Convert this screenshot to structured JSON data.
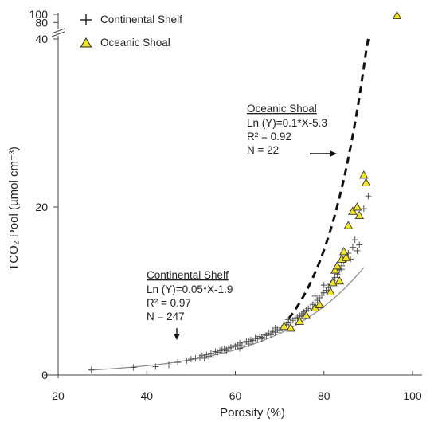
{
  "chart_data": {
    "type": "scatter",
    "xlabel": "Porosity (%)",
    "ylabel": "TCO₂ Pool (µmol cm⁻³)",
    "xlim": [
      20,
      100
    ],
    "ylim": [
      0,
      40
    ],
    "y_axis_break": "40 to 100 compressed",
    "x_ticks": [
      "20",
      "40",
      "60",
      "80",
      "100"
    ],
    "y_ticks": [
      "0",
      "20",
      "40",
      "80",
      "100"
    ],
    "legend": {
      "position": "top-left",
      "items": [
        {
          "label": "Continental Shelf",
          "marker": "plus",
          "color": "#333333"
        },
        {
          "label": "Oceanic Shoal",
          "marker": "triangle",
          "color": "#f5e61a"
        }
      ]
    },
    "series": [
      {
        "name": "Continental Shelf",
        "marker": "plus",
        "points": [
          [
            27.5,
            0.6
          ],
          [
            37,
            0.9
          ],
          [
            42,
            1.0
          ],
          [
            45,
            1.2
          ],
          [
            47,
            1.5
          ],
          [
            49,
            1.7
          ],
          [
            50,
            1.9
          ],
          [
            51,
            2.0
          ],
          [
            52,
            2.1
          ],
          [
            52.5,
            2.3
          ],
          [
            53,
            2.0
          ],
          [
            53.5,
            2.4
          ],
          [
            54,
            2.2
          ],
          [
            54.5,
            2.6
          ],
          [
            55,
            2.5
          ],
          [
            55.5,
            2.8
          ],
          [
            56,
            2.7
          ],
          [
            56.5,
            2.9
          ],
          [
            57,
            3.0
          ],
          [
            57.5,
            3.1
          ],
          [
            58,
            3.0
          ],
          [
            58.5,
            3.2
          ],
          [
            59,
            3.3
          ],
          [
            59.5,
            3.5
          ],
          [
            60,
            3.4
          ],
          [
            60.5,
            3.6
          ],
          [
            61,
            3.8
          ],
          [
            61.5,
            3.5
          ],
          [
            62,
            3.9
          ],
          [
            62.5,
            4.0
          ],
          [
            63,
            3.7
          ],
          [
            63.5,
            4.2
          ],
          [
            64,
            4.1
          ],
          [
            64.5,
            4.4
          ],
          [
            65,
            4.3
          ],
          [
            65.5,
            4.6
          ],
          [
            66,
            4.5
          ],
          [
            66.5,
            4.8
          ],
          [
            67,
            4.7
          ],
          [
            67.5,
            5.0
          ],
          [
            68,
            4.8
          ],
          [
            68.5,
            5.2
          ],
          [
            69,
            5.1
          ],
          [
            69.5,
            5.4
          ],
          [
            70,
            5.3
          ],
          [
            70.5,
            5.6
          ],
          [
            71,
            5.8
          ],
          [
            71.5,
            6.0
          ],
          [
            72,
            6.2
          ],
          [
            72.5,
            6.3
          ],
          [
            73,
            6.5
          ],
          [
            73.5,
            6.7
          ],
          [
            74,
            6.9
          ],
          [
            74.5,
            7.1
          ],
          [
            75,
            7.3
          ],
          [
            75.5,
            7.5
          ],
          [
            76,
            7.7
          ],
          [
            76.5,
            7.9
          ],
          [
            77,
            8.1
          ],
          [
            77.5,
            8.4
          ],
          [
            78,
            8.6
          ],
          [
            78.5,
            8.9
          ],
          [
            79,
            9.2
          ],
          [
            79.5,
            9.5
          ],
          [
            80,
            9.8
          ],
          [
            80.5,
            10.1
          ],
          [
            81,
            10.4
          ],
          [
            81.5,
            10.8
          ],
          [
            82,
            11.2
          ],
          [
            82.5,
            11.6
          ],
          [
            83,
            12.0
          ],
          [
            83.5,
            12.5
          ],
          [
            84,
            13.0
          ],
          [
            84.5,
            13.5
          ],
          [
            85,
            14.0
          ],
          [
            85.5,
            14.5
          ],
          [
            86,
            13.8
          ],
          [
            86.5,
            15.2
          ],
          [
            87,
            16.1
          ],
          [
            87.5,
            14.8
          ],
          [
            88,
            15.5
          ],
          [
            89,
            19.8
          ],
          [
            90,
            21.3
          ],
          [
            58,
            2.9
          ],
          [
            61,
            3.2
          ],
          [
            63,
            4.0
          ],
          [
            66,
            4.3
          ],
          [
            69,
            5.6
          ],
          [
            72,
            6.6
          ],
          [
            75,
            7.0
          ],
          [
            78,
            9.4
          ],
          [
            80,
            10.7
          ],
          [
            84,
            12.6
          ]
        ]
      },
      {
        "name": "Oceanic Shoal",
        "marker": "triangle",
        "points": [
          [
            71,
            5.8
          ],
          [
            72.5,
            5.6
          ],
          [
            74.5,
            6.4
          ],
          [
            76,
            7.1
          ],
          [
            78,
            8.0
          ],
          [
            79,
            8.4
          ],
          [
            81.5,
            9.9
          ],
          [
            82,
            11.0
          ],
          [
            82.5,
            12.5
          ],
          [
            83,
            13.0
          ],
          [
            83.5,
            11.2
          ],
          [
            84,
            13.8
          ],
          [
            84.5,
            14.7
          ],
          [
            85,
            14.0
          ],
          [
            85.5,
            17.8
          ],
          [
            86.5,
            19.5
          ],
          [
            87.5,
            20.0
          ],
          [
            88,
            19.0
          ],
          [
            89,
            23.8
          ],
          [
            89.5,
            22.9
          ],
          [
            96.5,
            97
          ]
        ]
      }
    ],
    "fits": [
      {
        "name": "Continental Shelf",
        "equation": "Ln (Y)=0.05*X-1.9",
        "style": "solid",
        "a": 0.05,
        "b": -1.9,
        "x_range": [
          27,
          89
        ]
      },
      {
        "name": "Oceanic Shoal",
        "equation": "Ln (Y)=0.1*X-5.3",
        "style": "dashed",
        "a": 0.1,
        "b": -5.3,
        "x_range": [
          72,
          90
        ]
      }
    ],
    "annotations": {
      "oceanic": {
        "title": "Oceanic Shoal",
        "equation": "Ln (Y)=0.1*X-5.3",
        "r2": "R² = 0.92",
        "n": "N = 22"
      },
      "continental": {
        "title": "Continental Shelf",
        "equation": "Ln (Y)=0.05*X-1.9",
        "r2": "R² = 0.97",
        "n": "N = 247"
      }
    }
  }
}
